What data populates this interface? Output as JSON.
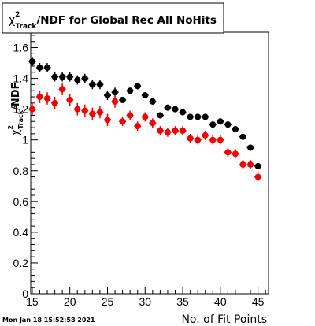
{
  "stamp": "Mon Jan 18 15:52:58 2021",
  "chart_data": {
    "type": "scatter",
    "title": "χ²_Track/NDF for Global Rec All NoHits",
    "title_parts": {
      "chi": "χ",
      "sup": "2",
      "sub": "Track",
      "rest": "/NDF for Global Rec All NoHits"
    },
    "xlabel": "No. of Fit Points",
    "ylabel": "χ²_Track/NDF",
    "ylabel_parts": {
      "chi": "χ",
      "sup": "2",
      "sub": "Track",
      "rest": "/NDF"
    },
    "xlim": [
      14.8,
      46.4
    ],
    "ylim": [
      0,
      1.7
    ],
    "x_ticks": [
      15,
      20,
      25,
      30,
      35,
      40,
      45
    ],
    "y_ticks": [
      0,
      0.2,
      0.4,
      0.6,
      0.8,
      1,
      1.2,
      1.4,
      1.6
    ],
    "y_tick_labels": [
      "0",
      "0.2",
      "0.4",
      "0.6",
      "0.8",
      "1",
      "1.2",
      "1.4",
      "1.6"
    ],
    "legend": "none",
    "grid": false,
    "colors": {
      "series_black": "#000000",
      "series_red": "#ee0000"
    },
    "x": [
      15,
      16,
      17,
      18,
      19,
      20,
      21,
      22,
      23,
      24,
      25,
      26,
      27,
      28,
      29,
      30,
      31,
      32,
      33,
      34,
      35,
      36,
      37,
      38,
      39,
      40,
      41,
      42,
      43,
      44,
      45
    ],
    "series": [
      {
        "color": "#000000",
        "values": [
          1.51,
          1.47,
          1.47,
          1.41,
          1.41,
          1.41,
          1.39,
          1.4,
          1.36,
          1.36,
          1.29,
          1.31,
          1.26,
          1.32,
          1.35,
          1.29,
          1.25,
          1.16,
          1.21,
          1.2,
          1.18,
          1.15,
          1.15,
          1.15,
          1.1,
          1.12,
          1.1,
          1.07,
          1.02,
          0.95,
          0.83
        ],
        "errors": [
          0.03,
          0.03,
          0.03,
          0.03,
          0.03,
          0.03,
          0.03,
          0.03,
          0.03,
          0.03,
          0.03,
          0.03,
          0.02,
          0.02,
          0.02,
          0.02,
          0.02,
          0.02,
          0.02,
          0.02,
          0.02,
          0.02,
          0.02,
          0.02,
          0.02,
          0.02,
          0.02,
          0.02,
          0.02,
          0.02,
          0.02
        ]
      },
      {
        "color": "#ee0000",
        "values": [
          1.2,
          1.28,
          1.27,
          1.24,
          1.33,
          1.26,
          1.2,
          1.19,
          1.17,
          1.18,
          1.13,
          1.25,
          1.12,
          1.16,
          1.09,
          1.15,
          1.11,
          1.06,
          1.05,
          1.06,
          1.06,
          1.01,
          1.0,
          1.03,
          1.0,
          1.0,
          0.92,
          0.91,
          0.84,
          0.84,
          0.76
        ],
        "errors": [
          0.04,
          0.04,
          0.04,
          0.04,
          0.04,
          0.04,
          0.04,
          0.04,
          0.04,
          0.04,
          0.04,
          0.04,
          0.03,
          0.03,
          0.03,
          0.03,
          0.03,
          0.03,
          0.03,
          0.03,
          0.03,
          0.03,
          0.03,
          0.03,
          0.03,
          0.03,
          0.03,
          0.03,
          0.03,
          0.03,
          0.03
        ]
      }
    ]
  }
}
